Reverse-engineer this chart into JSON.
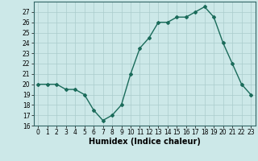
{
  "x": [
    0,
    1,
    2,
    3,
    4,
    5,
    6,
    7,
    8,
    9,
    10,
    11,
    12,
    13,
    14,
    15,
    16,
    17,
    18,
    19,
    20,
    21,
    22,
    23
  ],
  "y": [
    20,
    20,
    20,
    19.5,
    19.5,
    19,
    17.5,
    16.5,
    17,
    18,
    21,
    23.5,
    24.5,
    26,
    26,
    26.5,
    26.5,
    27,
    27.5,
    26.5,
    24,
    22,
    20,
    19
  ],
  "line_color": "#1a6b5a",
  "marker": "D",
  "marker_size": 2,
  "bg_color": "#cce8e8",
  "grid_color": "#aacccc",
  "xlabel": "Humidex (Indice chaleur)",
  "ylim": [
    16,
    28
  ],
  "xlim": [
    -0.5,
    23.5
  ],
  "yticks": [
    16,
    17,
    18,
    19,
    20,
    21,
    22,
    23,
    24,
    25,
    26,
    27
  ],
  "xticks": [
    0,
    1,
    2,
    3,
    4,
    5,
    6,
    7,
    8,
    9,
    10,
    11,
    12,
    13,
    14,
    15,
    16,
    17,
    18,
    19,
    20,
    21,
    22,
    23
  ],
  "tick_fontsize": 5.5,
  "xlabel_fontsize": 7,
  "line_width": 1.0
}
